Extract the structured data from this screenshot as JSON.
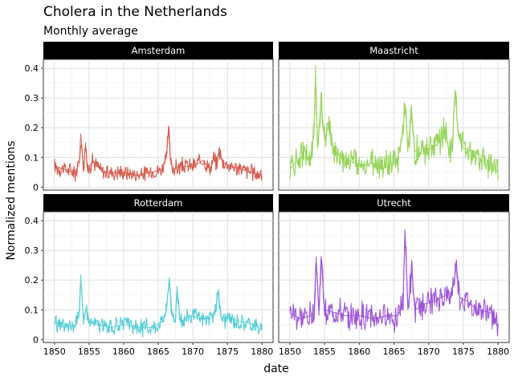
{
  "chart_data": {
    "type": "line",
    "title": "Cholera in the Netherlands",
    "subtitle": "Monthly average",
    "xlabel": "date",
    "ylabel": "Normalized mentions",
    "xlim": [
      1848.4,
      1881.6
    ],
    "ylim": [
      -0.01,
      0.43
    ],
    "x_ticks": [
      1850,
      1855,
      1860,
      1865,
      1870,
      1875,
      1880
    ],
    "y_ticks": [
      0,
      0.1,
      0.2,
      0.3,
      0.4
    ],
    "x_tick_labels": [
      "1850",
      "1855",
      "1860",
      "1865",
      "1870",
      "1875",
      "1880"
    ],
    "y_tick_labels": [
      "0",
      "0.1",
      "0.2",
      "0.3",
      "0.4"
    ],
    "grid": true,
    "facet_layout": "2x2",
    "panels": [
      {
        "name": "Amsterdam",
        "color": "#d65c4f",
        "baseline": 0.045,
        "x": [
          1850.0,
          1851.5,
          1853.0,
          1853.6,
          1853.8,
          1854.2,
          1854.5,
          1854.8,
          1855.5,
          1857.0,
          1860.0,
          1862.0,
          1864.0,
          1865.5,
          1866.2,
          1866.5,
          1866.8,
          1867.3,
          1868.0,
          1870.0,
          1871.5,
          1872.5,
          1873.0,
          1873.5,
          1873.8,
          1874.2,
          1874.6,
          1875.5,
          1877.0,
          1878.5,
          1880.0
        ],
        "y": [
          0.07,
          0.06,
          0.05,
          0.08,
          0.18,
          0.06,
          0.15,
          0.05,
          0.09,
          0.05,
          0.05,
          0.04,
          0.05,
          0.06,
          0.1,
          0.2,
          0.08,
          0.06,
          0.07,
          0.07,
          0.09,
          0.06,
          0.1,
          0.07,
          0.13,
          0.09,
          0.08,
          0.07,
          0.06,
          0.05,
          0.04
        ]
      },
      {
        "name": "Maastricht",
        "color": "#95d55a",
        "baseline": 0.08,
        "x": [
          1850.0,
          1851.5,
          1853.0,
          1853.5,
          1853.7,
          1854.0,
          1854.5,
          1855.0,
          1855.5,
          1856.5,
          1858.0,
          1860.0,
          1862.0,
          1864.0,
          1865.5,
          1866.3,
          1866.6,
          1867.0,
          1867.6,
          1868.0,
          1869.0,
          1870.5,
          1871.5,
          1872.3,
          1873.0,
          1873.5,
          1873.8,
          1874.3,
          1875.0,
          1876.5,
          1878.0,
          1880.0
        ],
        "y": [
          0.06,
          0.1,
          0.1,
          0.18,
          0.41,
          0.13,
          0.29,
          0.16,
          0.2,
          0.12,
          0.1,
          0.07,
          0.08,
          0.07,
          0.09,
          0.18,
          0.28,
          0.14,
          0.25,
          0.12,
          0.13,
          0.13,
          0.15,
          0.2,
          0.11,
          0.18,
          0.33,
          0.17,
          0.13,
          0.12,
          0.1,
          0.05
        ]
      },
      {
        "name": "Rotterdam",
        "color": "#56ced6",
        "baseline": 0.045,
        "x": [
          1850.0,
          1851.5,
          1853.0,
          1853.6,
          1853.8,
          1854.2,
          1854.6,
          1855.0,
          1856.5,
          1858.0,
          1860.0,
          1862.0,
          1864.0,
          1865.5,
          1866.2,
          1866.6,
          1867.0,
          1867.5,
          1867.7,
          1868.2,
          1869.5,
          1871.0,
          1872.5,
          1873.2,
          1873.7,
          1874.0,
          1874.5,
          1875.5,
          1877.0,
          1879.0,
          1880.0
        ],
        "y": [
          0.06,
          0.04,
          0.05,
          0.1,
          0.22,
          0.05,
          0.11,
          0.06,
          0.05,
          0.04,
          0.05,
          0.04,
          0.04,
          0.06,
          0.1,
          0.21,
          0.08,
          0.06,
          0.18,
          0.06,
          0.08,
          0.07,
          0.07,
          0.09,
          0.17,
          0.08,
          0.07,
          0.07,
          0.06,
          0.05,
          0.03
        ]
      },
      {
        "name": "Utrecht",
        "color": "#9d55d6",
        "baseline": 0.075,
        "x": [
          1850.0,
          1851.5,
          1853.0,
          1853.5,
          1853.8,
          1854.2,
          1854.5,
          1855.0,
          1856.5,
          1858.0,
          1860.0,
          1862.0,
          1864.0,
          1865.5,
          1866.3,
          1866.6,
          1867.0,
          1867.6,
          1868.0,
          1869.5,
          1871.0,
          1872.5,
          1873.0,
          1873.7,
          1874.0,
          1874.5,
          1875.5,
          1877.0,
          1879.0,
          1880.0
        ],
        "y": [
          0.09,
          0.07,
          0.08,
          0.1,
          0.28,
          0.08,
          0.28,
          0.1,
          0.09,
          0.08,
          0.08,
          0.07,
          0.08,
          0.08,
          0.12,
          0.37,
          0.1,
          0.23,
          0.1,
          0.12,
          0.13,
          0.15,
          0.13,
          0.2,
          0.25,
          0.14,
          0.13,
          0.1,
          0.09,
          0.04
        ]
      }
    ]
  }
}
